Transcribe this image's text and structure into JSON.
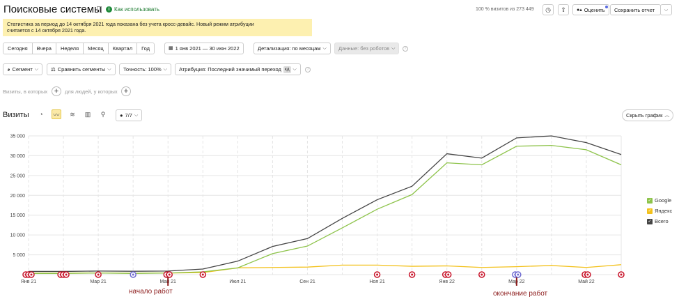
{
  "header": {
    "title": "Поисковые системы",
    "howto": "Как использовать",
    "visits_pct": "100 % визитов из 273 449",
    "rate_label": "Оценить",
    "save_report": "Сохранить отчет"
  },
  "notice": {
    "line1": "Статистика за период до 14 октября 2021 года показана без учета кросс-девайс. Новый режим атрибуции",
    "line2": "считается с 14 октября 2021 года."
  },
  "period": {
    "buttons": [
      "Сегодня",
      "Вчера",
      "Неделя",
      "Месяц",
      "Квартал",
      "Год"
    ],
    "range": "1 янв 2021 — 30 июн 2022",
    "detail": "Детализация: по месяцам",
    "data_filter": "Данные: без роботов"
  },
  "filters": {
    "segment": "Сегмент",
    "compare": "Сравнить сегменты",
    "accuracy": "Точность: 100%",
    "attribution": "Атрибуция: Последний значимый переход",
    "attribution_tag": "кд"
  },
  "segment_builder": {
    "visits_where": "Визиты, в которых",
    "people_where": "для людей, у которых"
  },
  "chart_header": {
    "label": "Визиты",
    "series_count": "7/7",
    "hide_chart": "Скрыть график"
  },
  "chart_data": {
    "type": "line",
    "x": [
      "Янв 21",
      "Фев 21",
      "Мар 21",
      "Апр 21",
      "Май 21",
      "Июн 21",
      "Июл 21",
      "Авг 21",
      "Сен 21",
      "Окт 21",
      "Ноя 21",
      "Дек 21",
      "Янв 22",
      "Фев 22",
      "Мар 22",
      "Апр 22",
      "Май 22",
      "Июн 22"
    ],
    "x_tick_labels": [
      "Янв 21",
      "Мар 21",
      "Май 21",
      "Июл 21",
      "Сен 21",
      "Ноя 21",
      "Янв 22",
      "Мар 22",
      "Май 22"
    ],
    "y_ticks": [
      "0",
      "5 000",
      "10 000",
      "15 000",
      "20 000",
      "25 000",
      "30 000",
      "35 000"
    ],
    "ylim": [
      0,
      35000
    ],
    "grid": true,
    "legend_position": "right",
    "series": [
      {
        "name": "Google",
        "color": "#8dc34a",
        "values": [
          300,
          300,
          400,
          300,
          400,
          700,
          1700,
          5300,
          7200,
          11800,
          16500,
          20200,
          28200,
          27700,
          32400,
          32600,
          31500,
          27700
        ]
      },
      {
        "name": "Яндекс",
        "color": "#f3c11b",
        "values": [
          350,
          350,
          400,
          350,
          400,
          500,
          1700,
          1800,
          1900,
          2400,
          2400,
          2100,
          2200,
          1800,
          2000,
          2300,
          1800,
          2500
        ]
      },
      {
        "name": "Всего",
        "color": "#444444",
        "values": [
          800,
          800,
          900,
          850,
          900,
          1400,
          3400,
          7100,
          9100,
          14200,
          18900,
          22300,
          30500,
          29400,
          34500,
          35000,
          33300,
          30300
        ]
      }
    ],
    "markers": [
      {
        "x": 0,
        "count": 3,
        "color": "#c8142a"
      },
      {
        "x": 1,
        "count": 3,
        "color": "#c8142a"
      },
      {
        "x": 2,
        "count": 1,
        "color": "#c8142a"
      },
      {
        "x": 3,
        "count": 1,
        "color": "#6f6bd1"
      },
      {
        "x": 4,
        "count": 2,
        "color": "#c8142a"
      },
      {
        "x": 5,
        "count": 1,
        "color": "#c8142a"
      },
      {
        "x": 10,
        "count": 1,
        "color": "#c8142a"
      },
      {
        "x": 11,
        "count": 1,
        "color": "#c8142a"
      },
      {
        "x": 12,
        "count": 2,
        "color": "#c8142a"
      },
      {
        "x": 13,
        "count": 1,
        "color": "#c8142a"
      },
      {
        "x": 14,
        "count": 2,
        "color": "#6f6bd1"
      },
      {
        "x": 16,
        "count": 2,
        "color": "#c8142a"
      },
      {
        "x": 17,
        "count": 1,
        "color": "#c8142a"
      }
    ]
  },
  "annotations": {
    "start": "начало работ",
    "end": "окончание работ"
  }
}
